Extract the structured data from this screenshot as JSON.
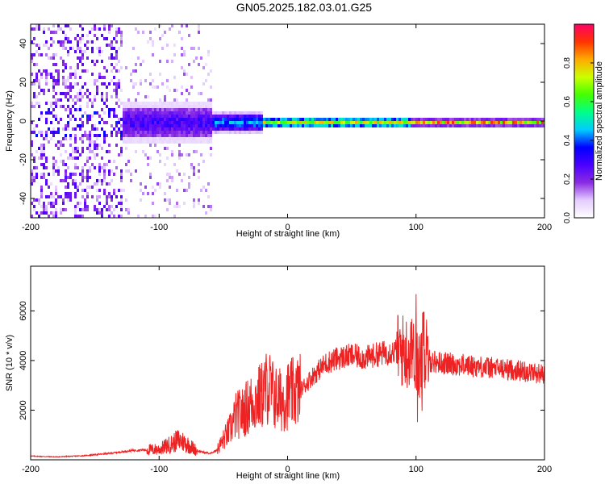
{
  "title": "GN05.2025.182.03.01.G25",
  "chart_data": [
    {
      "type": "heatmap",
      "xlabel": "Height of straight line (km)",
      "ylabel": "Frequency (Hz)",
      "xlim": [
        -200,
        200
      ],
      "ylim": [
        -50,
        50
      ],
      "xticks": [
        -200,
        -100,
        0,
        100,
        200
      ],
      "yticks": [
        -40,
        -20,
        0,
        20,
        40
      ],
      "colorbar": {
        "label": "Normalized spectral amplitude",
        "range": [
          0,
          1
        ],
        "ticks": [
          0,
          0.2,
          0.4,
          0.6,
          0.8
        ],
        "colors": [
          "#ffffff",
          "#e4ccff",
          "#8a2be2",
          "#4b00ff",
          "#0000ff",
          "#00ccff",
          "#00ff88",
          "#44ff00",
          "#ccff00",
          "#ffaa00",
          "#ff3300",
          "#ff0066"
        ]
      },
      "regions": [
        {
          "x_range": [
            -200,
            -130
          ],
          "freq_spread_hz": 50,
          "amplitude": 0.15,
          "note": "diffuse noise"
        },
        {
          "x_range": [
            -130,
            -60
          ],
          "freq_spread_hz": 8,
          "amplitude": 0.3
        },
        {
          "x_range": [
            -60,
            -20
          ],
          "freq_spread_hz": 4,
          "amplitude": 0.45
        },
        {
          "x_range": [
            -20,
            95
          ],
          "freq_spread_hz": 2,
          "amplitude": 0.75
        },
        {
          "x_range": [
            95,
            200
          ],
          "freq_spread_hz": 1.5,
          "amplitude": 0.85
        }
      ]
    },
    {
      "type": "line",
      "xlabel": "Height of straight line (km)",
      "ylabel": "SNR (10 * v/v)",
      "xlim": [
        -200,
        200
      ],
      "ylim": [
        0,
        7800
      ],
      "xticks": [
        -200,
        -100,
        0,
        100,
        200
      ],
      "yticks": [
        2000,
        4000,
        6000
      ],
      "color": "#ee2222",
      "series": [
        {
          "x": [
            -200,
            -180,
            -160,
            -140,
            -120,
            -100,
            -90,
            -85,
            -80,
            -70,
            -60,
            -55,
            -50,
            -45,
            -40,
            -35,
            -30,
            -25,
            -20,
            -15,
            -10,
            -5,
            0,
            10,
            20,
            30,
            40,
            50,
            60,
            70,
            80,
            90,
            95,
            100,
            103,
            105,
            110,
            120,
            140,
            160,
            180,
            200
          ],
          "values": [
            150,
            120,
            160,
            250,
            380,
            420,
            650,
            800,
            700,
            350,
            250,
            400,
            800,
            1200,
            1800,
            1900,
            2200,
            2400,
            2600,
            3000,
            2500,
            2400,
            2600,
            2800,
            3400,
            3900,
            4100,
            4200,
            4100,
            4250,
            4350,
            4400,
            4300,
            4200,
            3700,
            4600,
            4000,
            3900,
            3800,
            3700,
            3600,
            3450
          ]
        }
      ]
    }
  ]
}
